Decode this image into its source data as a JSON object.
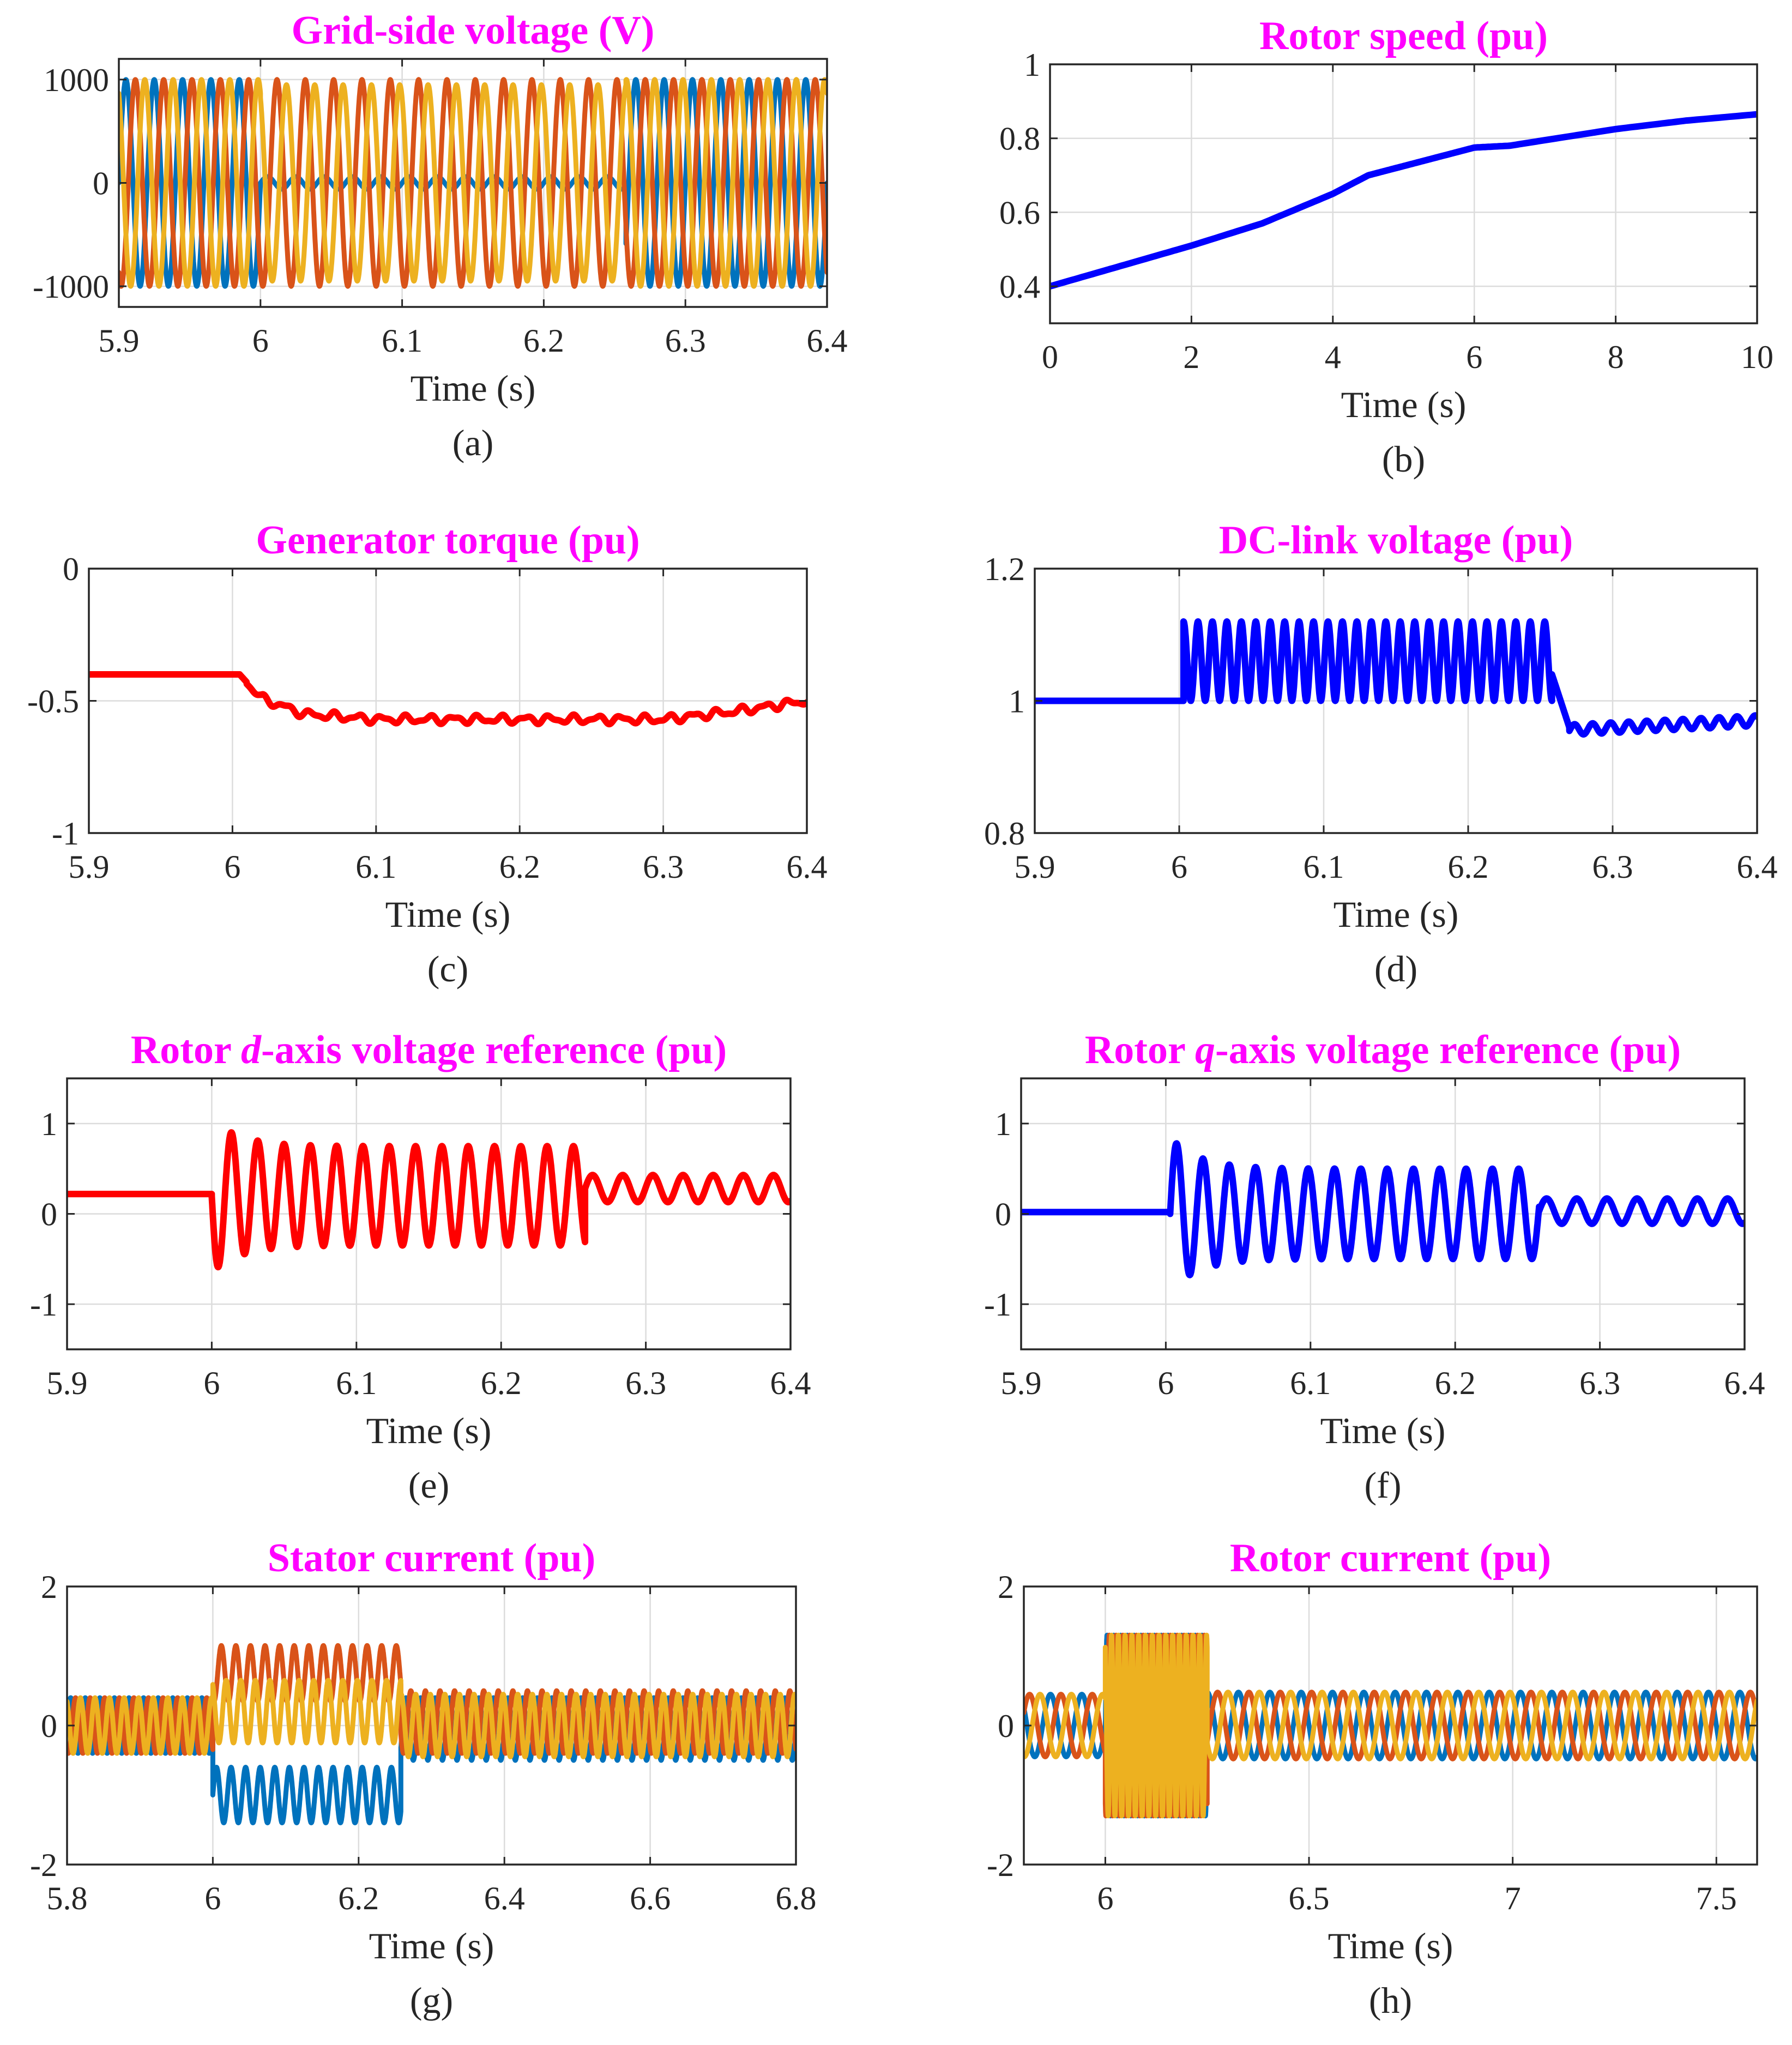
{
  "chart_data": [
    {
      "type": "line",
      "caption": "(a)",
      "title": "Grid-side voltage (V)",
      "title_parts": [],
      "xlabel": "Time (s)",
      "ylabel": "",
      "xlim": [
        5.9,
        6.4
      ],
      "ylim": [
        -1200,
        1200
      ],
      "xticks": [
        5.9,
        6.0,
        6.1,
        6.2,
        6.3,
        6.4
      ],
      "xtick_labels": [
        "5.9",
        "6",
        "6.1",
        "6.2",
        "6.3",
        "6.4"
      ],
      "yticks": [
        -1000,
        0,
        1000
      ],
      "ytick_labels": [
        "-1000",
        "0",
        "1000"
      ],
      "grid": true,
      "series": [
        {
          "color": "#0072bd",
          "kind": "sine3",
          "phase_deg": 0,
          "freq_hz": 50,
          "segments": [
            [
              5.9,
              6.0,
              1000
            ],
            [
              6.0,
              6.258,
              60
            ],
            [
              6.258,
              6.4,
              1000
            ]
          ]
        },
        {
          "color": "#d95319",
          "kind": "sine3",
          "phase_deg": -120,
          "freq_hz": 50,
          "segments": [
            [
              5.9,
              6.0,
              1000
            ],
            [
              6.0,
              6.258,
              1000
            ],
            [
              6.258,
              6.4,
              1000
            ]
          ]
        },
        {
          "color": "#edb120",
          "kind": "sine3",
          "phase_deg": 120,
          "freq_hz": 50,
          "segments": [
            [
              5.9,
              6.0,
              1000
            ],
            [
              6.0,
              6.258,
              950
            ],
            [
              6.258,
              6.4,
              1000
            ]
          ]
        }
      ]
    },
    {
      "type": "line",
      "caption": "(b)",
      "title": "Rotor speed (pu)",
      "title_parts": [],
      "xlabel": "Time (s)",
      "ylabel": "",
      "xlim": [
        0,
        10
      ],
      "ylim": [
        0.3,
        1.0
      ],
      "xticks": [
        0,
        2,
        4,
        6,
        8,
        10
      ],
      "xtick_labels": [
        "0",
        "2",
        "4",
        "6",
        "8",
        "10"
      ],
      "yticks": [
        0.4,
        0.6,
        0.8,
        1.0
      ],
      "ytick_labels": [
        "0.4",
        "0.6",
        "0.8",
        "1"
      ],
      "grid": true,
      "series": [
        {
          "color": "#0000ff",
          "kind": "points",
          "x": [
            0,
            1,
            2,
            3,
            4,
            4.5,
            5,
            5.5,
            6,
            6.5,
            7,
            8,
            9,
            10
          ],
          "y": [
            0.4,
            0.455,
            0.51,
            0.57,
            0.65,
            0.7,
            0.725,
            0.75,
            0.775,
            0.78,
            0.795,
            0.825,
            0.848,
            0.865
          ]
        }
      ]
    },
    {
      "type": "line",
      "caption": "(c)",
      "title": "Generator torque (pu)",
      "title_parts": [],
      "xlabel": "Time (s)",
      "ylabel": "",
      "xlim": [
        5.9,
        6.4
      ],
      "ylim": [
        -1,
        0
      ],
      "xticks": [
        5.9,
        6.0,
        6.1,
        6.2,
        6.3,
        6.4
      ],
      "xtick_labels": [
        "5.9",
        "6",
        "6.1",
        "6.2",
        "6.3",
        "6.4"
      ],
      "yticks": [
        -1,
        -0.5,
        0
      ],
      "ytick_labels": [
        "-1",
        "-0.5",
        "0"
      ],
      "grid": true,
      "series": [
        {
          "color": "#ff0000",
          "kind": "ripple",
          "x": [
            5.9,
            6.005,
            6.02,
            6.05,
            6.1,
            6.2,
            6.3,
            6.35,
            6.4
          ],
          "y": [
            -0.4,
            -0.4,
            -0.49,
            -0.55,
            -0.57,
            -0.57,
            -0.57,
            -0.54,
            -0.5
          ],
          "ripple_amp": 0.012,
          "ripple_start": 6.01,
          "ripple_freq": 60
        }
      ]
    },
    {
      "type": "line",
      "caption": "(d)",
      "title": "DC-link voltage (pu)",
      "title_parts": [],
      "xlabel": "Time (s)",
      "ylabel": "",
      "xlim": [
        5.9,
        6.4
      ],
      "ylim": [
        0.8,
        1.2
      ],
      "xticks": [
        5.9,
        6.0,
        6.1,
        6.2,
        6.3,
        6.4
      ],
      "xtick_labels": [
        "5.9",
        "6",
        "6.1",
        "6.2",
        "6.3",
        "6.4"
      ],
      "yticks": [
        0.8,
        1.0,
        1.2
      ],
      "ytick_labels": [
        "0.8",
        "1",
        "1.2"
      ],
      "grid": true,
      "series": [
        {
          "color": "#0000ff",
          "kind": "segments",
          "segments": [
            {
              "t0": 5.9,
              "t1": 6.003,
              "base": 1.0,
              "amp": 0.0,
              "freq": 0,
              "decay": 0
            },
            {
              "t0": 6.003,
              "t1": 6.258,
              "base": 1.06,
              "amp": 0.06,
              "freq": 100,
              "decay": 0,
              "phase_deg": 90
            },
            {
              "t0": 6.258,
              "t1": 6.4,
              "base": 0.965,
              "amp": 0.008,
              "freq": 80,
              "decay": 0,
              "ramp": [
                6.258,
                6.27,
                1.04,
                0.96
              ],
              "trend": [
                0.955,
                0.97
              ]
            }
          ]
        }
      ]
    },
    {
      "type": "line",
      "caption": "(e)",
      "title": "",
      "title_parts": [
        {
          "text": "Rotor ",
          "italic": false
        },
        {
          "text": "d",
          "italic": true
        },
        {
          "text": "-axis voltage reference (pu)",
          "italic": false
        }
      ],
      "xlabel": "Time (s)",
      "ylabel": "",
      "xlim": [
        5.9,
        6.4
      ],
      "ylim": [
        -1.5,
        1.5
      ],
      "xticks": [
        5.9,
        6.0,
        6.1,
        6.2,
        6.3,
        6.4
      ],
      "xtick_labels": [
        "5.9",
        "6",
        "6.1",
        "6.2",
        "6.3",
        "6.4"
      ],
      "yticks": [
        -1,
        0,
        1
      ],
      "ytick_labels": [
        "-1",
        "0",
        "1"
      ],
      "grid": true,
      "series": [
        {
          "color": "#ff0000",
          "kind": "segments",
          "segments": [
            {
              "t0": 5.9,
              "t1": 6.0,
              "base": 0.22,
              "amp": 0.0,
              "freq": 0,
              "decay": 0
            },
            {
              "t0": 6.0,
              "t1": 6.258,
              "base": 0.2,
              "amp": 0.55,
              "freq": 55,
              "decay": 0,
              "phase_deg": 180,
              "kick": 0.3
            },
            {
              "t0": 6.258,
              "t1": 6.4,
              "base": 0.28,
              "amp": 0.15,
              "freq": 48,
              "decay": 0,
              "phase_deg": 0
            }
          ]
        }
      ]
    },
    {
      "type": "line",
      "caption": "(f)",
      "title": "",
      "title_parts": [
        {
          "text": "Rotor ",
          "italic": false
        },
        {
          "text": "q",
          "italic": true
        },
        {
          "text": "-axis voltage reference (pu)",
          "italic": false
        }
      ],
      "xlabel": "Time (s)",
      "ylabel": "",
      "xlim": [
        5.9,
        6.4
      ],
      "ylim": [
        -1.5,
        1.5
      ],
      "xticks": [
        5.9,
        6.0,
        6.1,
        6.2,
        6.3,
        6.4
      ],
      "xtick_labels": [
        "5.9",
        "6",
        "6.1",
        "6.2",
        "6.3",
        "6.4"
      ],
      "yticks": [
        -1,
        0,
        1
      ],
      "ytick_labels": [
        "-1",
        "0",
        "1"
      ],
      "grid": true,
      "series": [
        {
          "color": "#0000ff",
          "kind": "segments",
          "segments": [
            {
              "t0": 5.9,
              "t1": 6.003,
              "base": 0.02,
              "amp": 0.0,
              "freq": 0,
              "decay": 0
            },
            {
              "t0": 6.003,
              "t1": 6.258,
              "base": 0.0,
              "amp": 0.5,
              "freq": 55,
              "decay": 0,
              "phase_deg": 0,
              "kick": 0.35
            },
            {
              "t0": 6.258,
              "t1": 6.4,
              "base": 0.03,
              "amp": 0.14,
              "freq": 48,
              "decay": 0,
              "phase_deg": 0
            }
          ]
        }
      ]
    },
    {
      "type": "line",
      "caption": "(g)",
      "title": "Stator current (pu)",
      "title_parts": [],
      "xlabel": "Time (s)",
      "ylabel": "",
      "xlim": [
        5.8,
        6.8
      ],
      "ylim": [
        -2,
        2
      ],
      "xticks": [
        5.8,
        6.0,
        6.2,
        6.4,
        6.6,
        6.8
      ],
      "xtick_labels": [
        "5.8",
        "6",
        "6.2",
        "6.4",
        "6.6",
        "6.8"
      ],
      "yticks": [
        -2,
        0,
        2
      ],
      "ytick_labels": [
        "-2",
        "0",
        "2"
      ],
      "grid": true,
      "series": [
        {
          "color": "#0072bd",
          "kind": "sine3",
          "phase_deg": 0,
          "freq_hz": 50,
          "segments": [
            [
              5.8,
              6.0,
              0.4,
              0.0
            ],
            [
              6.0,
              6.258,
              0.4,
              -1.0
            ],
            [
              6.258,
              6.8,
              0.45,
              -0.05
            ]
          ]
        },
        {
          "color": "#d95319",
          "kind": "sine3",
          "phase_deg": -120,
          "freq_hz": 50,
          "segments": [
            [
              5.8,
              6.0,
              0.4,
              0.0
            ],
            [
              6.0,
              6.258,
              0.4,
              0.75
            ],
            [
              6.258,
              6.8,
              0.45,
              0.05
            ]
          ]
        },
        {
          "color": "#edb120",
          "kind": "sine3",
          "phase_deg": 120,
          "freq_hz": 50,
          "segments": [
            [
              5.8,
              6.0,
              0.4,
              0.0
            ],
            [
              6.0,
              6.258,
              0.45,
              0.2
            ],
            [
              6.258,
              6.8,
              0.45,
              0.0
            ]
          ]
        }
      ]
    },
    {
      "type": "line",
      "caption": "(h)",
      "title": "Rotor current (pu)",
      "title_parts": [],
      "xlabel": "Time (s)",
      "ylabel": "",
      "xlim": [
        5.8,
        7.6
      ],
      "ylim": [
        -2,
        2
      ],
      "xticks": [
        6.0,
        6.5,
        7.0,
        7.5
      ],
      "xtick_labels": [
        "6",
        "6.5",
        "7",
        "7.5"
      ],
      "yticks": [
        -2,
        0,
        2
      ],
      "ytick_labels": [
        "-2",
        "0",
        "2"
      ],
      "grid": true,
      "series": [
        {
          "color": "#0072bd",
          "kind": "sine3",
          "phase_deg": 0,
          "freq_hz": 13,
          "segments": [
            [
              5.8,
              6.0,
              0.45,
              0.0
            ],
            [
              6.0,
              6.25,
              1.3,
              0.0,
              60
            ],
            [
              6.25,
              7.6,
              0.48,
              0.0
            ]
          ]
        },
        {
          "color": "#d95319",
          "kind": "sine3",
          "phase_deg": -120,
          "freq_hz": 13,
          "segments": [
            [
              5.8,
              6.0,
              0.45,
              0.0
            ],
            [
              6.0,
              6.25,
              1.3,
              0.0,
              60
            ],
            [
              6.25,
              7.6,
              0.48,
              0.0
            ]
          ]
        },
        {
          "color": "#edb120",
          "kind": "sine3",
          "phase_deg": 120,
          "freq_hz": 13,
          "segments": [
            [
              5.8,
              6.0,
              0.45,
              0.0
            ],
            [
              6.0,
              6.25,
              1.3,
              0.0,
              60
            ],
            [
              6.25,
              7.6,
              0.48,
              0.0
            ]
          ]
        }
      ]
    }
  ]
}
